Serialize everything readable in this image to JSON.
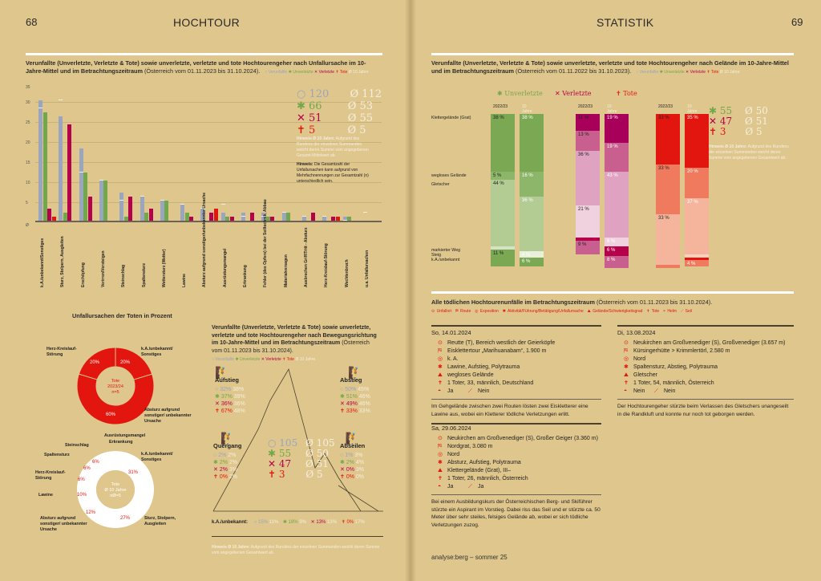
{
  "left_page": {
    "page_number": "68",
    "section_title": "HOCHTOUR"
  },
  "right_page": {
    "page_number": "69",
    "section_title": "STATISTIK",
    "footer": "analyse:berg – sommer 25"
  },
  "legend": {
    "verunfallte": "○ Verunfallte",
    "unverletzte": "✱ Unverletzte",
    "verletzte": "✕ Verletzte",
    "tote": "✝ Tote",
    "ten_years": "Ø 10 Jahre"
  },
  "colors": {
    "background": "#dfc68c",
    "verunfallte": "#9aa5bf",
    "unverletzte": "#73a84a",
    "verletzte": "#b5004c",
    "tote": "#e3160f",
    "ten_years": "#f5efe0"
  },
  "chart1": {
    "title_bold": "Verunfallte (Unverletzte, Verletzte & Tote) sowie unverletzte, verletzte und tote Hochtourengeher nach Unfallursache im 10-Jahre-Mittel und im Betrachtungszeitraum",
    "title_normal": "(Österreich vom 01.11.2023 bis 31.10.2024).",
    "y_top_label": "35",
    "y_ticks": [
      "30",
      "25",
      "20",
      "15",
      "10",
      "5",
      "Ø"
    ],
    "totals": {
      "verunfallte": "120",
      "verunfallte_avg": "Ø 112",
      "unverletzte": "66",
      "unverletzte_avg": "Ø 53",
      "verletzte": "51",
      "verletzte_avg": "Ø 55",
      "tote": "5",
      "tote_avg": "Ø 5"
    },
    "note1_bold": "Hinweis Ø 10 Jahre:",
    "note1_text": " Aufgrund des Rundens der einzelnen Summanden weicht deren Summe vom angegebenen Gesamt-Mittelwert ab.",
    "note2_bold": "Hinweis:",
    "note2_text": " Die Gesamtzahl der Unfallursachen kann aufgrund von Mehrfachnennungen zur Gesamtzahl (n) unterschiedlich sein."
  },
  "chart_data": [
    {
      "type": "bar",
      "title": "Verunfallte (Unverletzte, Verletzte & Tote) sowie unverletzte, verletzte und tote Hochtourengeher nach Unfallursache im 10-Jahre-Mittel und im Betrachtungszeitraum (Österreich vom 01.11.2023 bis 31.10.2024)",
      "categories": [
        "k.A./unbekannt/Sonstiges",
        "Sturz, Stolpern, Ausgleiten",
        "Erschöpfung",
        "Verirren/Versteigen",
        "Steinschlag",
        "Spaltensturz",
        "Wettersturz (Wetter)",
        "Lawine",
        "Absturz aufgrund sonstiger/unbekannter Ursache",
        "Ausrüstungsmangel",
        "Erkrankung",
        "Fehler (des Opfers) bei der Seiltechnik, Abbau",
        "Materialversagen",
        "Ausbrechen Griff/Tritt - Absturz",
        "Herz-Kreislauf-Störung",
        "Wechtenbruch",
        "u.a. Unfallursachen"
      ],
      "series": [
        {
          "name": "Verunfallte",
          "values": [
            30,
            26,
            18,
            10,
            7,
            6,
            5,
            4,
            3,
            2,
            2,
            2,
            2,
            1,
            1,
            1,
            0
          ]
        },
        {
          "name": "Unverletzte",
          "values": [
            27,
            2,
            12,
            10,
            1,
            2,
            5,
            2,
            0,
            1,
            0,
            1,
            2,
            0,
            0,
            1,
            0
          ]
        },
        {
          "name": "Verletzte",
          "values": [
            3,
            24,
            6,
            0,
            6,
            3,
            0,
            1,
            2,
            1,
            2,
            1,
            0,
            2,
            1,
            0,
            0
          ]
        },
        {
          "name": "Tote",
          "values": [
            1,
            0,
            0,
            0,
            0,
            0,
            0,
            0,
            3,
            0,
            0,
            0,
            0,
            0,
            1,
            0,
            0
          ]
        },
        {
          "name": "Ø 10 Jahre (Verunfallte)",
          "values": [
            28,
            30,
            12,
            10,
            5,
            6,
            5,
            4,
            3,
            4,
            1,
            1,
            2,
            1,
            1,
            0,
            2
          ]
        }
      ],
      "xlabel": "",
      "ylabel": "",
      "ylim": [
        0,
        35
      ],
      "grid": true
    },
    {
      "type": "pie",
      "title": "Unfallursachen der Toten in Prozent — Tote 2023/24 n=5",
      "categories": [
        "k.A./unbekannt/Sonstiges",
        "Absturz aufgrund sonstiger/unbekannter Ursache",
        "Herz-Kreislauf-Störung"
      ],
      "values": [
        20,
        60,
        20
      ]
    },
    {
      "type": "pie",
      "title": "Unfallursachen der Toten in Prozent — Tote Ø 10 Jahre nØ=5",
      "categories": [
        "k.A./unbekannt/Sonstiges",
        "Sturz, Stolpern, Ausgleiten",
        "Absturz aufgrund sonstiger/unbekannter Ursache",
        "Lawine",
        "Herz-Kreislauf-Störung",
        "Spaltensturz",
        "Steinschlag",
        "Ausrüstungsmangel",
        "Erkrankung"
      ],
      "values": [
        31,
        27,
        12,
        10,
        6,
        6,
        6,
        1,
        1
      ]
    },
    {
      "type": "table",
      "title": "Bewegungsrichtung",
      "columns": [
        "Richtung",
        "Verunfallte",
        "Verunfallte Ø",
        "Unverletzte",
        "Unverletzte Ø",
        "Verletzte",
        "Verletzte Ø",
        "Tote",
        "Tote Ø"
      ],
      "rows": [
        [
          "Aufstieg",
          "32%",
          "38%",
          "37%",
          "39%",
          "36%",
          "36%",
          "67%",
          "48%"
        ],
        [
          "Abstieg",
          "50%",
          "45%",
          "51%",
          "46%",
          "49%",
          "46%",
          "33%",
          "33%"
        ],
        [
          "Quergang",
          "2%",
          "2%",
          "2%",
          "2%",
          "2%",
          "3%",
          "0%",
          "2%"
        ],
        [
          "Abseilen",
          "1%",
          "3%",
          "2%",
          "4%",
          "0%",
          "3%",
          "0%",
          "0%"
        ],
        [
          "k.A./unbekannt",
          "15%",
          "11%",
          "18%",
          "9%",
          "13%",
          "13%",
          "0%",
          "17%"
        ]
      ]
    },
    {
      "type": "bar",
      "title": "Verunfallte nach Gelände (stacked %, 2022/23 vs. 10 Jahre)",
      "categories": [
        "Unverletzte 2022/23",
        "Unverletzte 10 Jahre",
        "Verletzte 2022/23",
        "Verletzte 10 Jahre",
        "Tote 2022/23",
        "Tote 10 Jahre"
      ],
      "series": [
        {
          "name": "Klettergelände (Grat)",
          "values": [
            38,
            38,
            11,
            19,
            33,
            35
          ]
        },
        {
          "name": "wegloses Gelände",
          "values": [
            5,
            16,
            13,
            19,
            33,
            20
          ]
        },
        {
          "name": "Gletscher",
          "values": [
            44,
            36,
            36,
            43,
            33,
            37
          ]
        },
        {
          "name": "markierter Weg",
          "values": [
            2,
            0,
            21,
            6,
            0,
            2
          ]
        },
        {
          "name": "Steig",
          "values": [
            0,
            4,
            2,
            6,
            0,
            2
          ]
        },
        {
          "name": "k.A./unbekannt",
          "values": [
            11,
            6,
            9,
            8,
            0,
            4
          ]
        }
      ],
      "ylim": [
        0,
        100
      ]
    }
  ],
  "donut": {
    "title": "Unfallursachen der Toten in Prozent",
    "d1": {
      "center": [
        "Tote",
        "2023/24",
        "n=5"
      ],
      "labels": {
        "herz": "Herz-Kreislauf-Störung",
        "ka": "k.A./unbekannt/ Sonstiges",
        "absturz": "Absturz aufgrund sonstiger/ unbekannter Ursache"
      },
      "pcts": {
        "herz": "20%",
        "ka": "20%",
        "absturz": "60%"
      }
    },
    "d2": {
      "center": [
        "Tote",
        "Ø 10 Jahre",
        "nØ=5"
      ],
      "labels": {
        "ausr": "Ausrüstungsmangel",
        "erkr": "Erkrankung",
        "stein": "Steinschlag",
        "spalte": "Spaltensturz",
        "herz": "Herz-Kreislauf-Störung",
        "lawine": "Lawine",
        "absturz": "Absturz aufgrund sonstiger/ unbekannter Ursache",
        "ka": "k.A./unbekannt/ Sonstiges",
        "sturz": "Sturz, Stolpern, Ausgleiten"
      },
      "pcts": {
        "ka": "31%",
        "sturz": "27%",
        "absturz": "12%",
        "lawine": "10%",
        "herz": "6%",
        "spalte": "6%",
        "stein": "6%",
        "small1": "1%",
        "small2": "1%"
      }
    }
  },
  "mountain": {
    "title_bold": "Verunfallte (Unverletzte, Verletzte & Tote) sowie unverletzte, verletzte und tote Hochtourengeher nach Bewegungsrichtung im 10-Jahre-Mittel und im Betrachtungszeitraum",
    "title_normal": "(Österreich vom 01.11.2023 bis 31.10.2024).",
    "aufstieg": {
      "label": "Aufstieg",
      "v": "32%",
      "va": "38%",
      "u": "37%",
      "ua": "39%",
      "x": "36%",
      "xa": "36%",
      "t": "67%",
      "ta": "48%"
    },
    "abstieg": {
      "label": "Abstieg",
      "v": "50%",
      "va": "45%",
      "u": "51%",
      "ua": "46%",
      "x": "49%",
      "xa": "46%",
      "t": "33%",
      "ta": "33%"
    },
    "quergang": {
      "label": "Quergang",
      "v": "2%",
      "va": "2%",
      "u": "2%",
      "ua": "2%",
      "x": "2%",
      "xa": "3%",
      "t": "0%",
      "ta": "2%"
    },
    "abseilen": {
      "label": "Abseilen",
      "v": "1%",
      "va": "3%",
      "u": "2%",
      "ua": "4%",
      "x": "0%",
      "xa": "3%",
      "t": "0%",
      "ta": "0%"
    },
    "center": {
      "v": "105",
      "va": "Ø 105",
      "u": "55",
      "ua": "Ø 50",
      "x": "47",
      "xa": "Ø 51",
      "t": "3",
      "ta": "Ø 5"
    },
    "unknown": {
      "label": "k.A./unbekannt:",
      "v": "15%",
      "va": "11%",
      "u": "18%",
      "ua": "9%",
      "x": "13%",
      "xa": "13%",
      "t": "0%",
      "ta": "17%"
    },
    "note_bold": "Hinweis Ø 10 Jahre:",
    "note_text": " Aufgrund des Rundens der einzelnen Summanden weicht deren Summe vom angegebenen Gesamtwert ab."
  },
  "terrain": {
    "title_bold": "Verunfallte (Unverletzte, Verletzte & Tote) sowie unverletzte, verletzte und tote Hochtourengeher nach Gelände im 10-Jahre-Mittel und im Betrachtungszeitraum",
    "title_normal": "(Österreich vom 01.11.2022 bis 31.10.2023).",
    "groups": [
      "✱ Unverletzte",
      "✕ Verletzte",
      "✝ Tote"
    ],
    "col_year": "2022/23",
    "col_avg": "10 Jahre",
    "rows": [
      "Klettergelände (Grat)",
      "wegloses Gelände",
      "Gletscher",
      "markierter Weg",
      "Steig",
      "k.A./unbekannt"
    ],
    "totals": {
      "u": "55",
      "ua": "Ø 50",
      "x": "47",
      "xa": "Ø 51",
      "t": "3",
      "ta": "Ø 5"
    },
    "note_bold": "Hinweis Ø 10 Jahre:",
    "note_text": " Aufgrund des Rundens der einzelnen Summanden weicht deren Summe vom angegebenen Gesamtwert ab."
  },
  "fatal": {
    "title_bold": "Alle tödlichen Hochtourenunfälle im Betrachtungszeitraum",
    "title_normal": "(Österreich vom 01.11.2023 bis 31.10.2024).",
    "legend": [
      "⊙ Unfallort",
      "⛿ Route",
      "◎ Exposition",
      "✱ Aktivität/Führung/Betätigung/Unfallursache",
      "⛰ Gelände/Schwierigkeitsgrad",
      "✝ Tote",
      "◓ Helm",
      "⟋ Seil"
    ],
    "cases": [
      {
        "date": "So, 14.01.2024",
        "ort": "Reutte (T), Bereich westlich der Geierköpfe",
        "route": "Eisklettertour „Marihuanabam“, 1.900 m",
        "exposition": "k. A.",
        "aktivitaet": "Lawine, Aufstieg, Polytrauma",
        "gelaende": "wegloses Gelände",
        "tote": "1 Toter, 33, männlich, Deutschland",
        "helm": "Ja",
        "seil": "Nein",
        "desc": "Im Gehgelände zwischen zwei Routen lösten zwei Eiskletterer eine Lawine aus, wobei ein Kletterer tödliche Verletzungen erlitt."
      },
      {
        "date": "Sa, 29.06.2024",
        "ort": "Neukirchen am Großvenediger (S), Großer Geiger (3.360 m)",
        "route": "Nordgrat, 3.080 m",
        "exposition": "Nord",
        "aktivitaet": "Absturz, Aufstieg, Polytrauma",
        "gelaende": "Klettergelände (Grat), III–",
        "tote": "1 Toter, 26, männlich, Österreich",
        "helm": "Ja",
        "seil": "Ja",
        "desc": "Bei einem Ausbildungskurs der Österreichischen Berg- und Skiführer stürzte ein Aspirant im Vorstieg. Dabei riss das Seil und er stürzte ca. 50 Meter über sehr steiles, felsiges Gelände ab, wobei er sich tödliche Verletzungen zuzog."
      },
      {
        "date": "Di, 13.08.2024",
        "ort": "Neukirchen am Großvenediger (S), Großvenediger (3.657 m)",
        "route": "Kürsingerhütte > Krimmlertörl, 2.580 m",
        "exposition": "Nord",
        "aktivitaet": "Spaltensturz, Abstieg, Polytrauma",
        "gelaende": "Gletscher",
        "tote": "1 Toter, 54, männlich, Österreich",
        "helm": "Nein",
        "seil": "Nein",
        "desc": "Der Hochtourengeher stürzte beim Verlassen des Gletschers unangeseilt in die Randkluft und konnte nur noch tot geborgen werden."
      }
    ]
  },
  "icons": {
    "ort": "⊙",
    "route": "⛿",
    "exposition": "◎",
    "aktivitaet": "✱",
    "gelaende": "⛰",
    "tote": "✝",
    "helm": "◓",
    "seil": "⟋"
  }
}
